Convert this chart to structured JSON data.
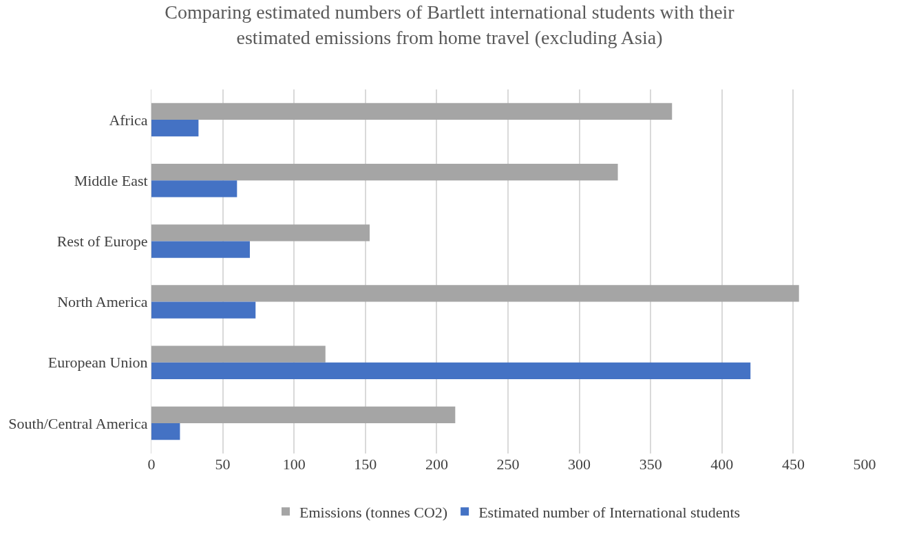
{
  "chart_data": {
    "type": "bar",
    "orientation": "horizontal",
    "title": "Comparing estimated numbers of Bartlett international students with their estimated emissions from home travel (excluding Asia)",
    "categories": [
      "Africa",
      "Middle East",
      "Rest of Europe",
      "North America",
      "European Union",
      "South/Central America"
    ],
    "series": [
      {
        "name": "Emissions (tonnes CO2)",
        "color": "#a5a5a5",
        "values": [
          365,
          327,
          153,
          454,
          122,
          213
        ]
      },
      {
        "name": "Estimated number of International students",
        "color": "#4472c4",
        "values": [
          33,
          60,
          69,
          73,
          420,
          20
        ]
      }
    ],
    "xlim": [
      0,
      500
    ],
    "xticks": [
      0,
      50,
      100,
      150,
      200,
      250,
      300,
      350,
      400,
      450,
      500
    ],
    "grid": "x",
    "legend": "bottom"
  }
}
